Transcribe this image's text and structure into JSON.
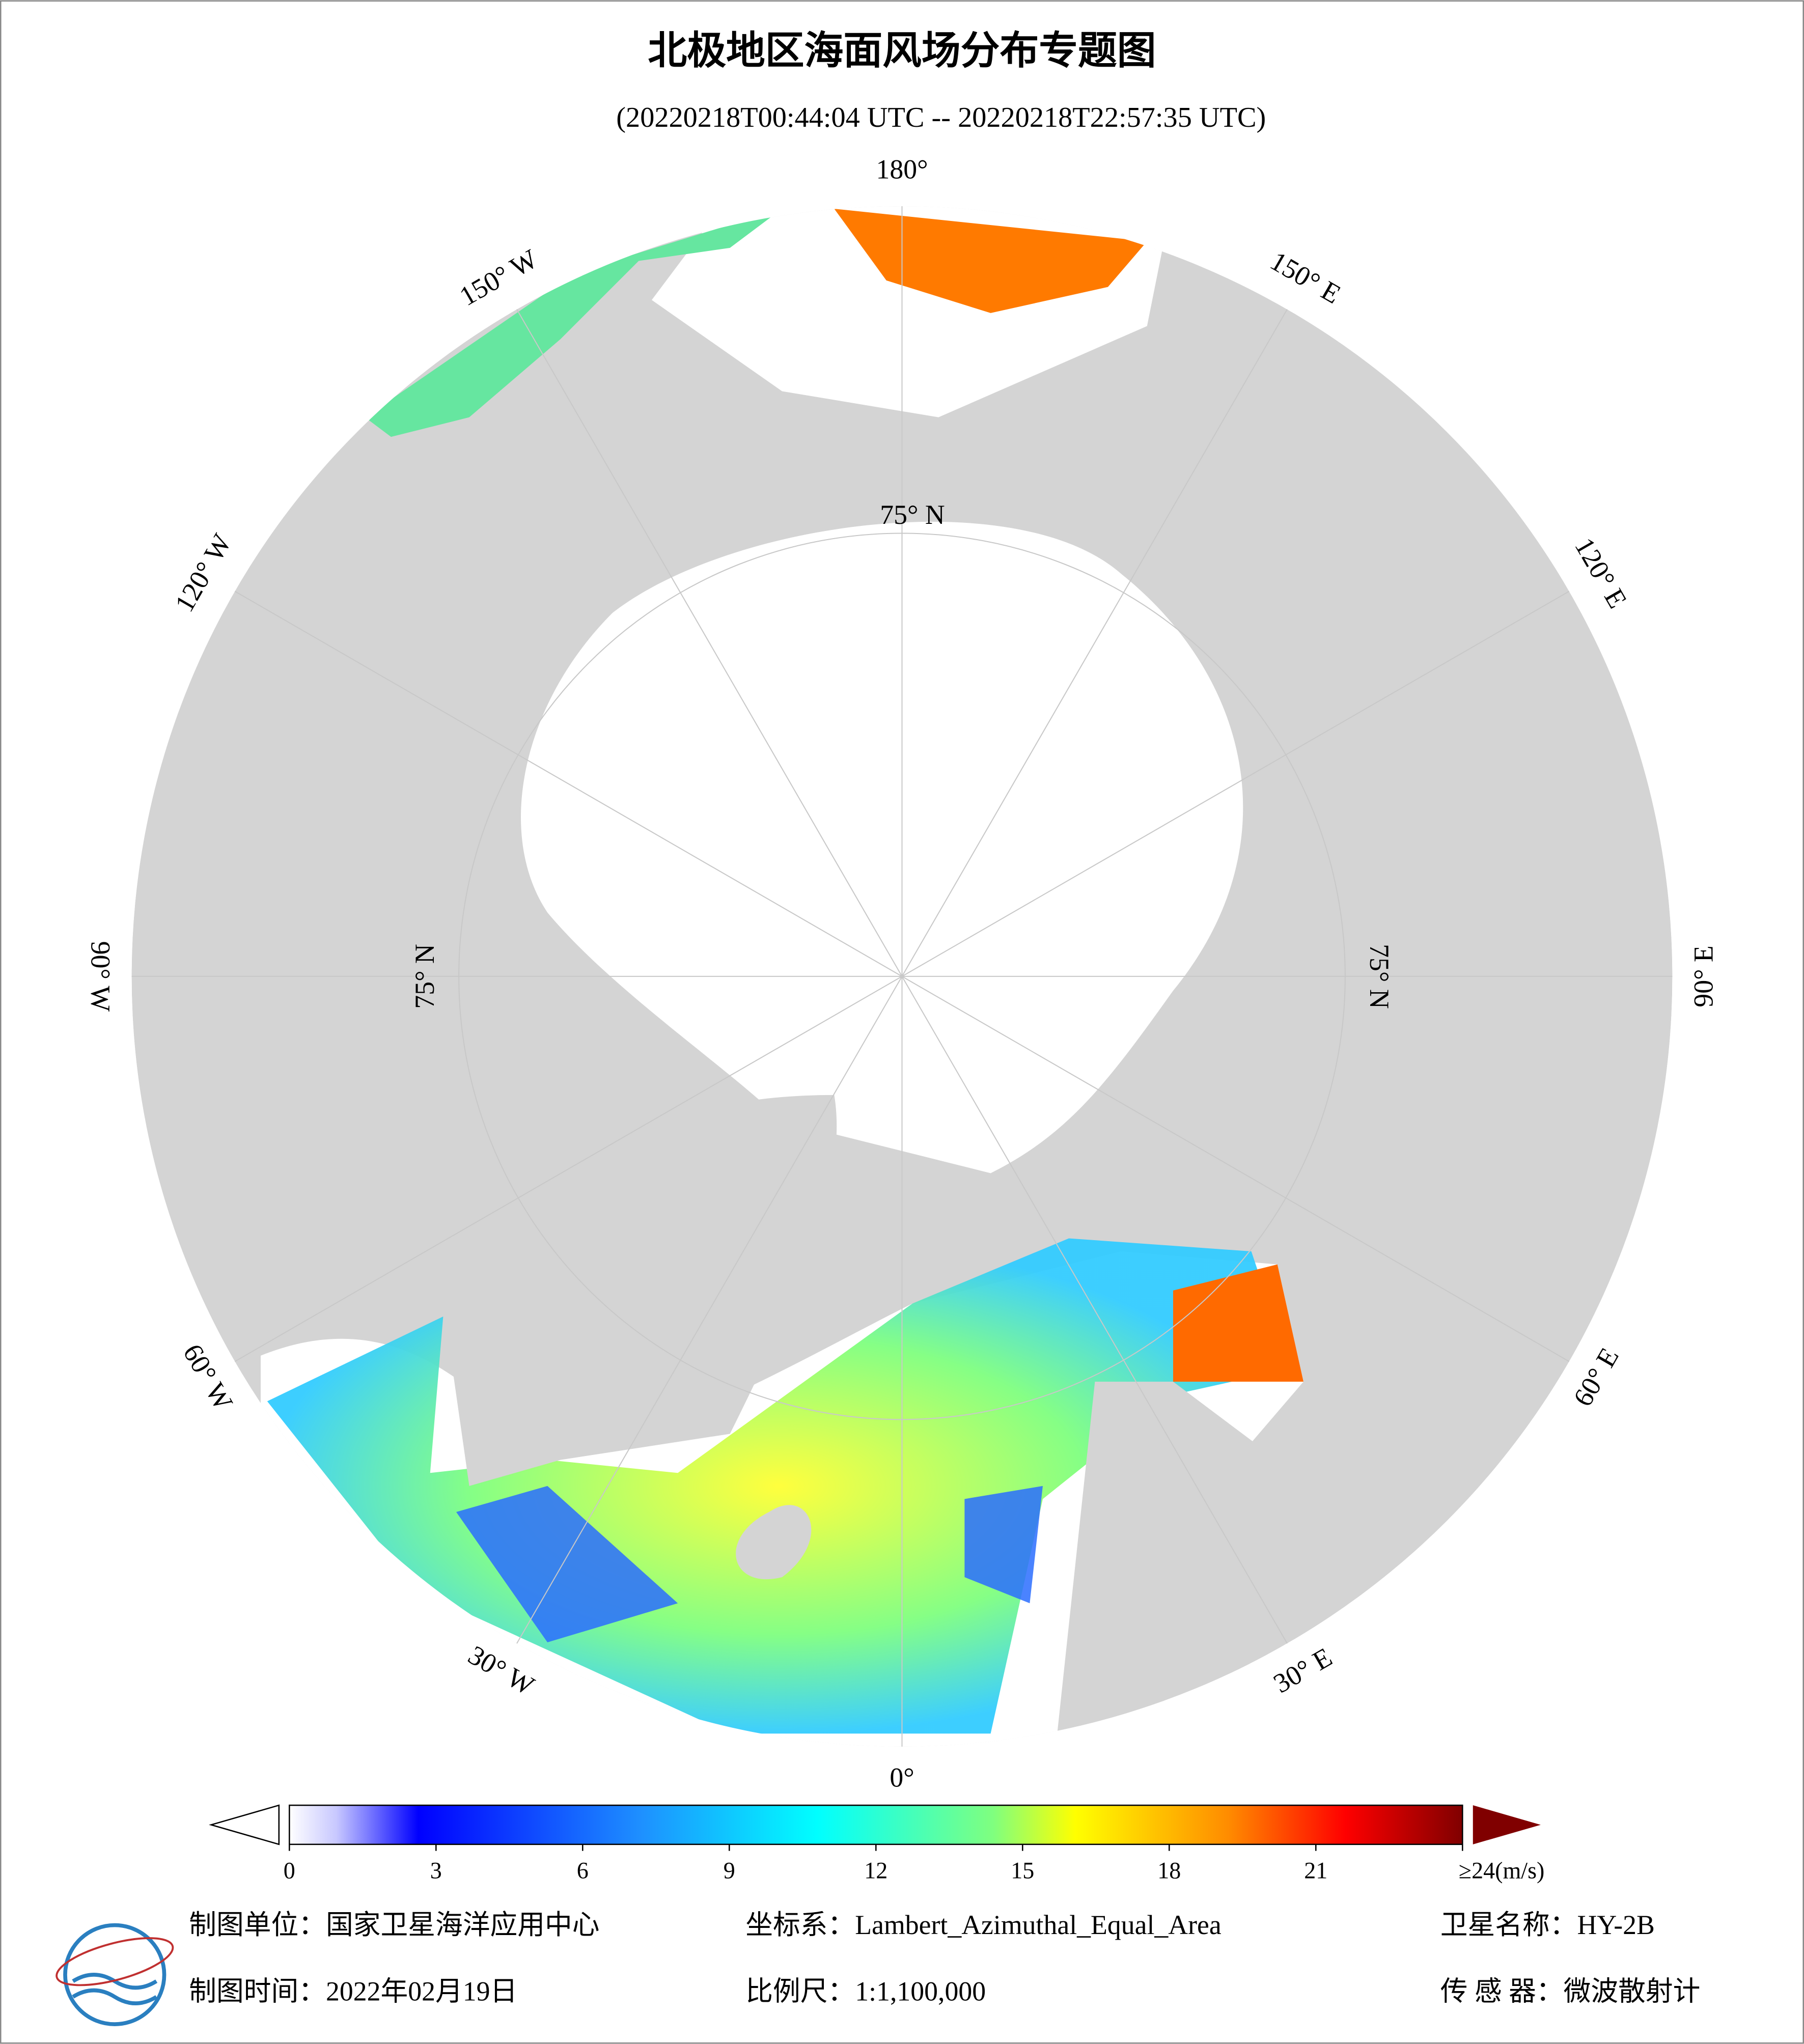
{
  "header": {
    "title": "北极地区海面风场分布专题图",
    "subtitle": "(20220218T00:44:04 UTC -- 20220218T22:57:35 UTC)"
  },
  "map": {
    "meridian_labels": [
      "0°",
      "30° E",
      "60° E",
      "90° E",
      "120° E",
      "150° E",
      "180°",
      "150° W",
      "120° W",
      "90° W",
      "60° W",
      "30° W"
    ],
    "latitude_labels": [
      "75° N",
      "75° N",
      "75° N"
    ]
  },
  "colorbar": {
    "range": [
      0,
      24
    ],
    "ticks": [
      0,
      3,
      6,
      9,
      12,
      15,
      18,
      21,
      {
        "value": 24,
        "label": "≥24(m/s)"
      }
    ]
  },
  "footer": {
    "producer": "制图单位：国家卫星海洋应用中心",
    "projection": "坐标系：Lambert_Azimuthal_Equal_Area",
    "satellite": "卫星名称：HY-2B",
    "date": "制图时间：2022年02月19日",
    "scale": "比例尺：1:1,100,000",
    "sensor": "传 感 器：微波散射计"
  }
}
